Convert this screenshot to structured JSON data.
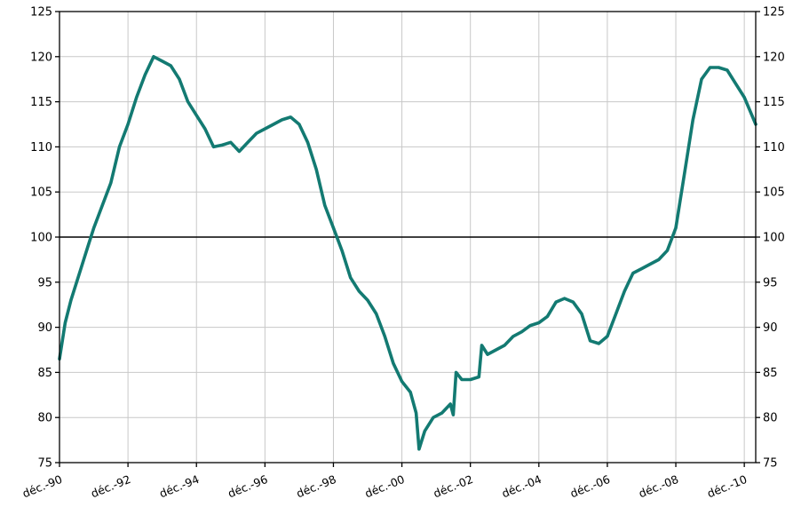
{
  "chart_data": {
    "type": "line",
    "title": "",
    "xlabel": "",
    "ylabel": "",
    "ylim": [
      75,
      125
    ],
    "yticks": [
      75,
      80,
      85,
      90,
      95,
      100,
      105,
      110,
      115,
      120,
      125
    ],
    "reference_line": 100,
    "grid": true,
    "legend": "none",
    "x_range": [
      "1990-12",
      "2011-04"
    ],
    "xtick_labels": [
      "déc.-90",
      "déc.-92",
      "déc.-94",
      "déc.-96",
      "déc.-98",
      "déc.-00",
      "déc.-02",
      "déc.-04",
      "déc.-06",
      "déc.-08",
      "déc.-10"
    ],
    "xtick_dates": [
      "1990-12",
      "1992-12",
      "1994-12",
      "1996-12",
      "1998-12",
      "2000-12",
      "2002-12",
      "2004-12",
      "2006-12",
      "2008-12",
      "2010-12"
    ],
    "series": [
      {
        "color": "#137a72",
        "points": [
          [
            "1990-12",
            86.5
          ],
          [
            "1991-02",
            90.5
          ],
          [
            "1991-04",
            93.0
          ],
          [
            "1991-06",
            95.0
          ],
          [
            "1991-08",
            97.0
          ],
          [
            "1991-10",
            99.0
          ],
          [
            "1991-12",
            101.0
          ],
          [
            "1992-03",
            103.5
          ],
          [
            "1992-06",
            106.0
          ],
          [
            "1992-09",
            110.0
          ],
          [
            "1992-12",
            112.5
          ],
          [
            "1993-03",
            115.5
          ],
          [
            "1993-06",
            118.0
          ],
          [
            "1993-09",
            120.0
          ],
          [
            "1993-12",
            119.5
          ],
          [
            "1994-03",
            119.0
          ],
          [
            "1994-06",
            117.5
          ],
          [
            "1994-09",
            115.0
          ],
          [
            "1994-12",
            113.5
          ],
          [
            "1995-03",
            112.0
          ],
          [
            "1995-06",
            110.0
          ],
          [
            "1995-09",
            110.2
          ],
          [
            "1995-12",
            110.5
          ],
          [
            "1996-03",
            109.5
          ],
          [
            "1996-06",
            110.5
          ],
          [
            "1996-09",
            111.5
          ],
          [
            "1996-12",
            112.0
          ],
          [
            "1997-03",
            112.5
          ],
          [
            "1997-06",
            113.0
          ],
          [
            "1997-09",
            113.3
          ],
          [
            "1997-12",
            112.5
          ],
          [
            "1998-03",
            110.5
          ],
          [
            "1998-06",
            107.5
          ],
          [
            "1998-09",
            103.5
          ],
          [
            "1998-12",
            101.0
          ],
          [
            "1999-03",
            98.5
          ],
          [
            "1999-06",
            95.5
          ],
          [
            "1999-09",
            94.0
          ],
          [
            "1999-12",
            93.0
          ],
          [
            "2000-03",
            91.5
          ],
          [
            "2000-06",
            89.0
          ],
          [
            "2000-09",
            86.0
          ],
          [
            "2000-12",
            84.0
          ],
          [
            "2001-03",
            82.8
          ],
          [
            "2001-05",
            80.5
          ],
          [
            "2001-06",
            76.5
          ],
          [
            "2001-08",
            78.5
          ],
          [
            "2001-11",
            80.0
          ],
          [
            "2002-02",
            80.5
          ],
          [
            "2002-05",
            81.5
          ],
          [
            "2002-06",
            80.3
          ],
          [
            "2002-07",
            85.0
          ],
          [
            "2002-09",
            84.2
          ],
          [
            "2002-12",
            84.2
          ],
          [
            "2003-03",
            84.5
          ],
          [
            "2003-04",
            88.0
          ],
          [
            "2003-06",
            87.0
          ],
          [
            "2003-09",
            87.5
          ],
          [
            "2003-12",
            88.0
          ],
          [
            "2004-03",
            89.0
          ],
          [
            "2004-06",
            89.5
          ],
          [
            "2004-09",
            90.2
          ],
          [
            "2004-12",
            90.5
          ],
          [
            "2005-03",
            91.2
          ],
          [
            "2005-06",
            92.8
          ],
          [
            "2005-09",
            93.2
          ],
          [
            "2005-12",
            92.8
          ],
          [
            "2006-03",
            91.5
          ],
          [
            "2006-06",
            88.5
          ],
          [
            "2006-09",
            88.2
          ],
          [
            "2006-12",
            89.0
          ],
          [
            "2007-03",
            91.5
          ],
          [
            "2007-06",
            94.0
          ],
          [
            "2007-09",
            96.0
          ],
          [
            "2007-12",
            96.5
          ],
          [
            "2008-03",
            97.0
          ],
          [
            "2008-06",
            97.5
          ],
          [
            "2008-09",
            98.5
          ],
          [
            "2008-12",
            101.0
          ],
          [
            "2009-03",
            107.0
          ],
          [
            "2009-06",
            113.0
          ],
          [
            "2009-09",
            117.5
          ],
          [
            "2009-12",
            118.8
          ],
          [
            "2010-03",
            118.8
          ],
          [
            "2010-06",
            118.5
          ],
          [
            "2010-09",
            117.0
          ],
          [
            "2010-12",
            115.5
          ],
          [
            "2011-02",
            114.0
          ],
          [
            "2011-04",
            112.5
          ]
        ]
      }
    ]
  }
}
